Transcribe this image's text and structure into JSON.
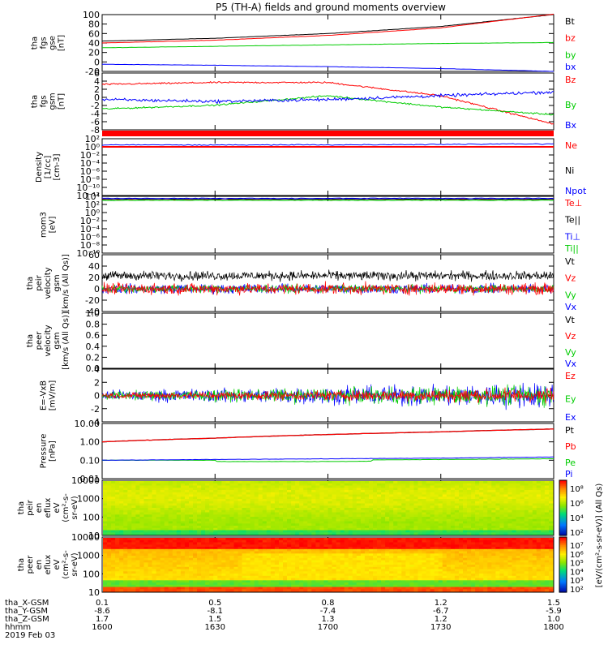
{
  "title": "P5 (TH-A) fields and ground moments overview",
  "colors": {
    "black": "#000000",
    "red": "#ff0000",
    "green": "#00cc00",
    "blue": "#0000ff"
  },
  "panels": [
    {
      "id": "fgs_gse",
      "ylabel": [
        "tha",
        "fgs",
        "gse",
        "[nT]"
      ],
      "ticks": [
        "100",
        "80",
        "60",
        "40",
        "20",
        "0",
        "-20"
      ],
      "legend": [
        {
          "label": "Bt",
          "color": "black"
        },
        {
          "label": "bz",
          "color": "red"
        },
        {
          "label": "by",
          "color": "green"
        },
        {
          "label": "bx",
          "color": "blue"
        }
      ]
    },
    {
      "id": "fgs_gsm",
      "ylabel": [
        "tha",
        "fgs",
        "gsm",
        "[nT]"
      ],
      "ticks": [
        "6",
        "4",
        "2",
        "0",
        "-2",
        "-4",
        "-6",
        "-8"
      ],
      "legend": [
        {
          "label": "Bz",
          "color": "red"
        },
        {
          "label": "By",
          "color": "green"
        },
        {
          "label": "Bx",
          "color": "blue"
        }
      ]
    },
    {
      "id": "density",
      "ylabel": [
        "Density",
        "[1/cc]",
        "[cm-3]"
      ],
      "ticks": [
        "10²",
        "10⁰",
        "10⁻²",
        "10⁻⁴",
        "10⁻⁶",
        "10⁻⁸",
        "10⁻¹⁰",
        "10⁻¹²"
      ],
      "legend": [
        {
          "label": "Ne",
          "color": "red"
        },
        {
          "label": "Ni",
          "color": "black"
        },
        {
          "label": "Npot",
          "color": "blue"
        }
      ]
    },
    {
      "id": "temperature",
      "ylabel": [
        "mom3",
        "[eV]"
      ],
      "ticks": [
        "10⁴",
        "10²",
        "10⁰",
        "10⁻²",
        "10⁻⁴",
        "10⁻⁶",
        "10⁻⁸",
        "10⁻¹⁰"
      ],
      "legend": [
        {
          "label": "Te⊥",
          "color": "red"
        },
        {
          "label": "Te||",
          "color": "black"
        },
        {
          "label": "Ti⊥",
          "color": "blue"
        },
        {
          "label": "Ti||",
          "color": "green"
        }
      ]
    },
    {
      "id": "peir_velocity",
      "ylabel": [
        "tha",
        "peir",
        "velocity",
        "gsm",
        "[km/s (All Qs)]"
      ],
      "ticks": [
        "60",
        "40",
        "20",
        "0",
        "-20",
        "-40"
      ],
      "legend": [
        {
          "label": "Vt",
          "color": "black"
        },
        {
          "label": "Vz",
          "color": "red"
        },
        {
          "label": "Vy",
          "color": "green"
        },
        {
          "label": "Vx",
          "color": "blue"
        }
      ]
    },
    {
      "id": "peer_velocity",
      "ylabel": [
        "tha",
        "peer",
        "velocity",
        "gsm",
        "[km/s (All Qs)]"
      ],
      "ticks": [
        "1.0",
        "0.8",
        "0.6",
        "0.4",
        "0.2",
        "0.0"
      ],
      "legend": [
        {
          "label": "Vt",
          "color": "black"
        },
        {
          "label": "Vz",
          "color": "red"
        },
        {
          "label": "Vy",
          "color": "green"
        },
        {
          "label": "Vx",
          "color": "blue"
        }
      ]
    },
    {
      "id": "efield",
      "ylabel": [
        "E=-VxB",
        "[mV/m]"
      ],
      "ticks": [
        "4",
        "2",
        "0",
        "-2",
        "-4"
      ],
      "legend": [
        {
          "label": "Ez",
          "color": "red"
        },
        {
          "label": "Ey",
          "color": "green"
        },
        {
          "label": "Ex",
          "color": "blue"
        }
      ]
    },
    {
      "id": "pressure",
      "ylabel": [
        "Pressure",
        "[nPa]"
      ],
      "ticks": [
        "10.00",
        "1.00",
        "0.10",
        "0.01"
      ],
      "legend": [
        {
          "label": "Pt",
          "color": "black"
        },
        {
          "label": "Pb",
          "color": "red"
        },
        {
          "label": "Pe",
          "color": "green"
        },
        {
          "label": "Pi",
          "color": "blue"
        }
      ]
    },
    {
      "id": "peir_eflux",
      "ylabel": [
        "tha",
        "peir",
        "en",
        "eflux",
        "eV",
        "(cm²-s-",
        "sr-eV)"
      ],
      "ticks": [
        "10000",
        "1000",
        "100",
        "10"
      ],
      "colorbar": [
        "10⁸",
        "10⁶",
        "10⁴",
        "10²"
      ]
    },
    {
      "id": "peer_eflux",
      "ylabel": [
        "tha",
        "peer",
        "en",
        "eflux",
        "eV",
        "(cm²-s-",
        "sr-eV)"
      ],
      "ticks": [
        "10000",
        "1000",
        "100",
        "10"
      ],
      "colorbar": [
        "10⁷",
        "10⁶",
        "10⁵",
        "10⁴",
        "10³",
        "10²"
      ]
    }
  ],
  "colorbar_label": "[eV/(cm²-s-sr-eV)] (All Qs)",
  "xaxis": {
    "row_labels": [
      "tha_X-GSM",
      "tha_Y-GSM",
      "tha_Z-GSM",
      "hhmm",
      "2019 Feb 03"
    ],
    "columns": [
      [
        "0.1",
        "-8.6",
        "1.7",
        "1600"
      ],
      [
        "0.5",
        "-8.1",
        "1.5",
        "1630"
      ],
      [
        "0.8",
        "-7.4",
        "1.3",
        "1700"
      ],
      [
        "1.2",
        "-6.7",
        "1.2",
        "1730"
      ],
      [
        "1.5",
        "-5.9",
        "1.0",
        "1800"
      ]
    ]
  },
  "chart_data": [
    {
      "type": "line",
      "panel": "fgs_gse",
      "x": [
        "1600",
        "1630",
        "1700",
        "1730",
        "1800"
      ],
      "ylim": [
        -20,
        100
      ],
      "series": [
        {
          "name": "Bt",
          "values": [
            44,
            50,
            60,
            75,
            100
          ]
        },
        {
          "name": "bz",
          "values": [
            40,
            46,
            56,
            72,
            101
          ]
        },
        {
          "name": "by",
          "values": [
            30,
            33,
            36,
            39,
            41
          ]
        },
        {
          "name": "bx",
          "values": [
            -5,
            -7,
            -10,
            -14,
            -20
          ]
        }
      ]
    },
    {
      "type": "line",
      "panel": "fgs_gsm",
      "x": [
        "1600",
        "1630",
        "1700",
        "1730",
        "1800"
      ],
      "ylim": [
        -9,
        6
      ],
      "series": [
        {
          "name": "Bz",
          "values": [
            3,
            3.5,
            3.5,
            0,
            -7.5
          ]
        },
        {
          "name": "By",
          "values": [
            -3.5,
            -2.5,
            0,
            -3,
            -5
          ]
        },
        {
          "name": "Bx",
          "values": [
            -1,
            -1.5,
            -1,
            0,
            1
          ]
        }
      ]
    },
    {
      "type": "line",
      "panel": "density",
      "x": [
        "1600",
        "1630",
        "1700",
        "1730",
        "1800"
      ],
      "log": true,
      "series": [
        {
          "name": "Ne",
          "values": [
            1,
            1,
            1,
            1,
            1
          ]
        },
        {
          "name": "Npot",
          "values": [
            3,
            3,
            3,
            4,
            5
          ]
        }
      ]
    },
    {
      "type": "line",
      "panel": "temperature",
      "x": [
        "1600",
        "1630",
        "1700",
        "1730",
        "1800"
      ],
      "log": true,
      "series": [
        {
          "name": "Te⊥",
          "values": [
            2000,
            2000,
            2000,
            2000,
            2000
          ]
        },
        {
          "name": "Te||",
          "values": [
            2000,
            2000,
            2000,
            2000,
            2000
          ]
        },
        {
          "name": "Ti⊥",
          "values": [
            3000,
            3000,
            3000,
            3000,
            3000
          ]
        },
        {
          "name": "Ti||",
          "values": [
            1000,
            1000,
            1000,
            1000,
            1000
          ]
        }
      ]
    },
    {
      "type": "line",
      "panel": "peir_velocity",
      "x": [
        "1600",
        "1800"
      ],
      "ylim": [
        -40,
        60
      ],
      "series": [
        {
          "name": "Vt",
          "values": [
            15,
            15
          ]
        },
        {
          "name": "Vz",
          "values": [
            0,
            0
          ]
        },
        {
          "name": "Vy",
          "values": [
            0,
            0
          ]
        },
        {
          "name": "Vx",
          "values": [
            0,
            0
          ]
        }
      ]
    },
    {
      "type": "line",
      "panel": "efield",
      "x": [
        "1600",
        "1800"
      ],
      "ylim": [
        -4,
        4
      ],
      "series": [
        {
          "name": "Ez",
          "values": [
            0,
            0
          ]
        },
        {
          "name": "Ey",
          "values": [
            0,
            0
          ]
        },
        {
          "name": "Ex",
          "values": [
            0,
            0
          ]
        }
      ]
    },
    {
      "type": "line",
      "panel": "pressure",
      "x": [
        "1600",
        "1630",
        "1700",
        "1730",
        "1800"
      ],
      "log": true,
      "series": [
        {
          "name": "Pt",
          "values": [
            1.0,
            1.6,
            2.5,
            3.5,
            5.0
          ]
        },
        {
          "name": "Pb",
          "values": [
            1.0,
            1.6,
            2.5,
            3.5,
            5.0
          ]
        },
        {
          "name": "Pe",
          "values": [
            0.1,
            0.1,
            0.1,
            0.11,
            0.12
          ]
        },
        {
          "name": "Pi",
          "values": [
            0.1,
            0.11,
            0.12,
            0.13,
            0.15
          ]
        }
      ]
    },
    {
      "type": "heatmap",
      "panel": "peir_eflux",
      "ylim": [
        10,
        10000
      ],
      "log": true
    },
    {
      "type": "heatmap",
      "panel": "peer_eflux",
      "ylim": [
        10,
        10000
      ],
      "log": true
    }
  ]
}
